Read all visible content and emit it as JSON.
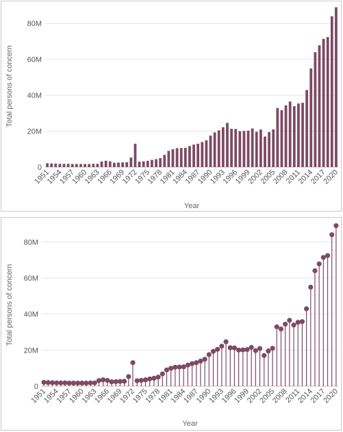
{
  "chart_data": [
    {
      "type": "bar",
      "xlabel": "Year",
      "ylabel": "Total persons of concern",
      "ylim": [
        0,
        90000000
      ],
      "yticks": [
        0,
        20000000,
        40000000,
        60000000,
        80000000
      ],
      "ytick_labels": [
        "0",
        "20M",
        "40M",
        "60M",
        "80M"
      ],
      "xtick_labels": [
        "1951",
        "1954",
        "1957",
        "1960",
        "1963",
        "1966",
        "1969",
        "1972",
        "1975",
        "1978",
        "1981",
        "1984",
        "1987",
        "1990",
        "1993",
        "1996",
        "1999",
        "2002",
        "2005",
        "2008",
        "2011",
        "2014",
        "2017",
        "2020"
      ],
      "grid": true,
      "color": "#7d4a63",
      "x": [
        1951,
        1952,
        1953,
        1954,
        1955,
        1956,
        1957,
        1958,
        1959,
        1960,
        1961,
        1962,
        1963,
        1964,
        1965,
        1966,
        1967,
        1968,
        1969,
        1970,
        1971,
        1972,
        1973,
        1974,
        1975,
        1976,
        1977,
        1978,
        1979,
        1980,
        1981,
        1982,
        1983,
        1984,
        1985,
        1986,
        1987,
        1988,
        1989,
        1990,
        1991,
        1992,
        1993,
        1994,
        1995,
        1996,
        1997,
        1998,
        1999,
        2000,
        2001,
        2002,
        2003,
        2004,
        2005,
        2006,
        2007,
        2008,
        2009,
        2010,
        2011,
        2012,
        2013,
        2014,
        2015,
        2016,
        2017,
        2018,
        2019,
        2020
      ],
      "values": [
        2100000,
        2000000,
        1900000,
        1800000,
        1800000,
        1800000,
        1700000,
        1700000,
        1700000,
        1700000,
        1700000,
        1800000,
        1800000,
        3100000,
        3500000,
        3200000,
        2400000,
        2500000,
        2600000,
        2700000,
        5300000,
        13000000,
        3000000,
        3200000,
        3500000,
        4000000,
        4400000,
        5000000,
        6800000,
        9000000,
        9900000,
        10500000,
        10600000,
        10700000,
        11700000,
        12500000,
        13000000,
        13900000,
        14900000,
        17500000,
        19300000,
        20400000,
        22200000,
        24600000,
        21300000,
        21200000,
        20000000,
        20100000,
        20300000,
        21500000,
        19700000,
        20900000,
        17000000,
        19500000,
        21000000,
        32900000,
        31700000,
        34400000,
        36500000,
        33900000,
        35400000,
        35800000,
        42900000,
        54900000,
        64000000,
        67800000,
        71400000,
        72400000,
        84000000,
        89000000
      ]
    },
    {
      "type": "scatter",
      "xlabel": "Year",
      "ylabel": "Total persons of concern",
      "ylim": [
        0,
        90000000
      ],
      "yticks": [
        0,
        20000000,
        40000000,
        60000000,
        80000000
      ],
      "ytick_labels": [
        "0",
        "20M",
        "40M",
        "60M",
        "80M"
      ],
      "xtick_labels": [
        "1951",
        "1954",
        "1957",
        "1960",
        "1963",
        "1966",
        "1969",
        "1972",
        "1975",
        "1978",
        "1981",
        "1984",
        "1987",
        "1990",
        "1993",
        "1996",
        "1999",
        "2002",
        "2005",
        "2008",
        "2011",
        "2014",
        "2017",
        "2020"
      ],
      "grid": true,
      "color": "#7d4a63",
      "x": [
        1951,
        1952,
        1953,
        1954,
        1955,
        1956,
        1957,
        1958,
        1959,
        1960,
        1961,
        1962,
        1963,
        1964,
        1965,
        1966,
        1967,
        1968,
        1969,
        1970,
        1971,
        1972,
        1973,
        1974,
        1975,
        1976,
        1977,
        1978,
        1979,
        1980,
        1981,
        1982,
        1983,
        1984,
        1985,
        1986,
        1987,
        1988,
        1989,
        1990,
        1991,
        1992,
        1993,
        1994,
        1995,
        1996,
        1997,
        1998,
        1999,
        2000,
        2001,
        2002,
        2003,
        2004,
        2005,
        2006,
        2007,
        2008,
        2009,
        2010,
        2011,
        2012,
        2013,
        2014,
        2015,
        2016,
        2017,
        2018,
        2019,
        2020
      ],
      "values": [
        2100000,
        2000000,
        1900000,
        1800000,
        1800000,
        1800000,
        1700000,
        1700000,
        1700000,
        1700000,
        1700000,
        1800000,
        1800000,
        3100000,
        3500000,
        3200000,
        2400000,
        2500000,
        2600000,
        2700000,
        5300000,
        13000000,
        3000000,
        3200000,
        3500000,
        4000000,
        4400000,
        5000000,
        6800000,
        9000000,
        9900000,
        10500000,
        10600000,
        10700000,
        11700000,
        12500000,
        13000000,
        13900000,
        14900000,
        17500000,
        19300000,
        20400000,
        22200000,
        24600000,
        21300000,
        21200000,
        20000000,
        20100000,
        20300000,
        21500000,
        19700000,
        20900000,
        17000000,
        19500000,
        21000000,
        32900000,
        31700000,
        34400000,
        36500000,
        33900000,
        35400000,
        35800000,
        42900000,
        54900000,
        64000000,
        67800000,
        71400000,
        72400000,
        84000000,
        89000000
      ]
    }
  ]
}
